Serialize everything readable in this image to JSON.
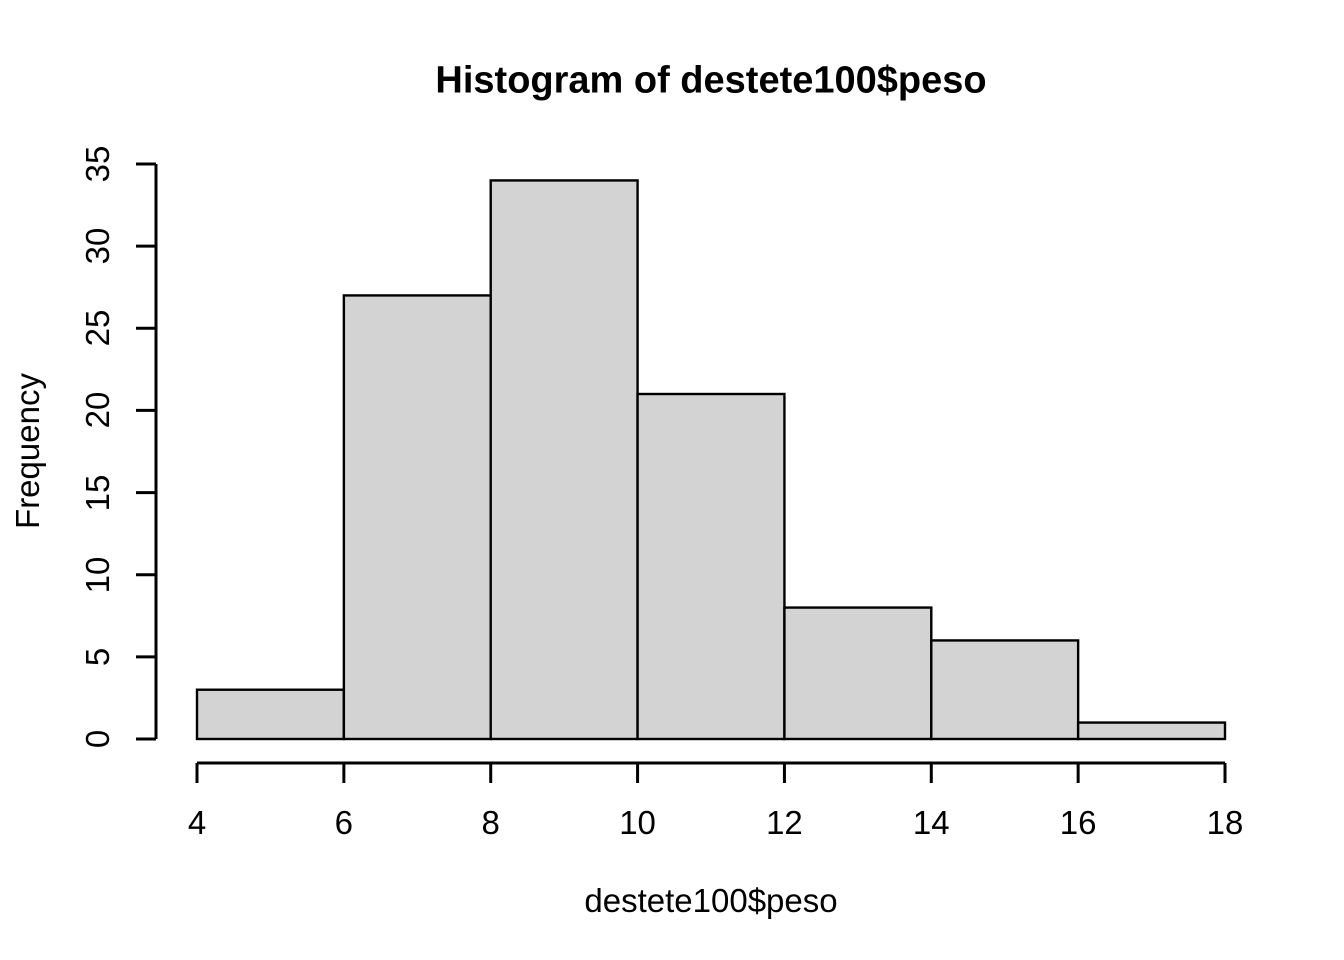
{
  "title": "Histogram of destete100$peso",
  "x_axis": {
    "label": "destete100$peso",
    "ticks": [
      4,
      6,
      8,
      10,
      12,
      14,
      16,
      18
    ]
  },
  "y_axis": {
    "label": "Frequency",
    "ticks": [
      0,
      5,
      10,
      15,
      20,
      25,
      30,
      35
    ]
  },
  "chart_data": {
    "type": "bar",
    "subtype": "histogram",
    "title": "Histogram of destete100$peso",
    "xlabel": "destete100$peso",
    "ylabel": "Frequency",
    "bin_edges": [
      4,
      6,
      8,
      10,
      12,
      14,
      16,
      18
    ],
    "categories": [
      "4-6",
      "6-8",
      "8-10",
      "10-12",
      "12-14",
      "14-16",
      "16-18"
    ],
    "values": [
      3,
      27,
      34,
      21,
      8,
      6,
      1
    ],
    "total_count": 100,
    "xlim": [
      4,
      18
    ],
    "ylim": [
      0,
      35
    ],
    "grid": false,
    "legend": "none",
    "colors": {
      "bar_fill": "#D3D3D3",
      "bar_border": "#000000",
      "axis": "#000000",
      "text": "#000000",
      "background": "#FFFFFF"
    }
  }
}
